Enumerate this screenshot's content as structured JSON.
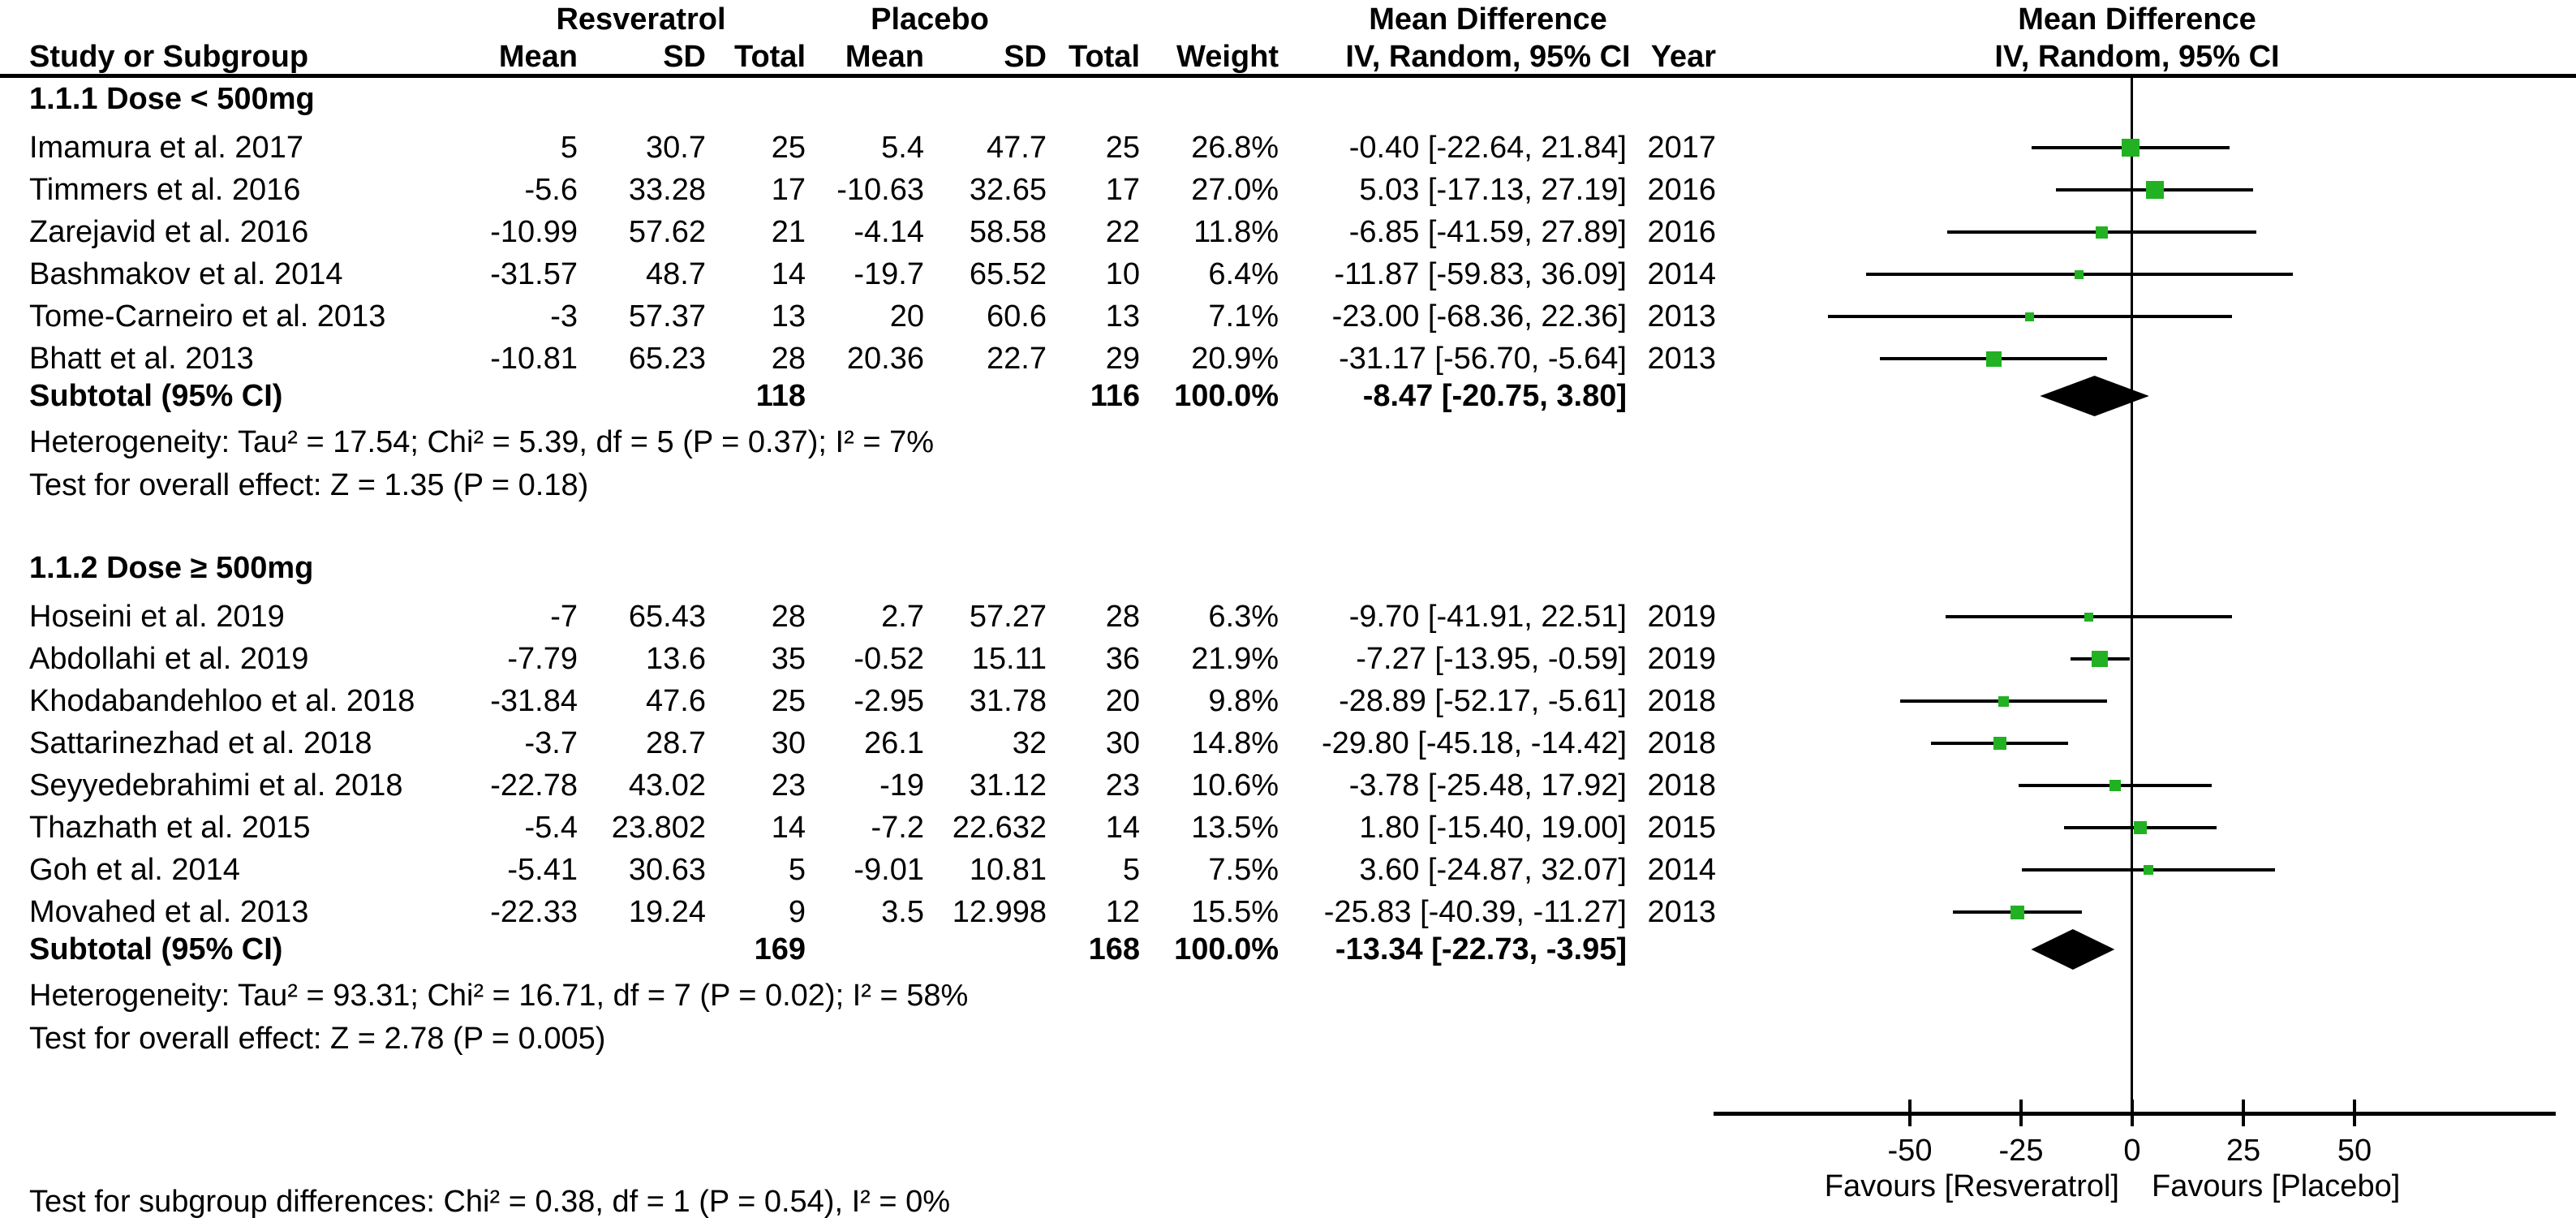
{
  "colors": {
    "marker_green": "#22b122",
    "text": "#000000"
  },
  "header": {
    "study_col": "Study or Subgroup",
    "group_treatment": "Resveratrol",
    "group_control": "Placebo",
    "md_label": "Mean Difference",
    "cols": [
      "Mean",
      "SD",
      "Total",
      "Mean",
      "SD",
      "Total",
      "Weight"
    ],
    "iv_label": "IV, Random, 95% CI",
    "year_label": "Year"
  },
  "footer_note": "Test for subgroup differences: Chi² = 0.38, df = 1 (P = 0.54), I² = 0%",
  "chart_data": {
    "type": "forest",
    "effect_measure": "Mean Difference",
    "model": "IV, Random, 95% CI",
    "x_axis": {
      "ticks": [
        -50,
        -25,
        0,
        25,
        50
      ],
      "min": -94,
      "max": 95
    },
    "favours_left": "Favours [Resveratrol]",
    "favours_right": "Favours [Placebo]",
    "subgroups": [
      {
        "title": "1.1.1 Dose < 500mg",
        "studies": [
          {
            "study": "Imamura et al. 2017",
            "t_mean": "5",
            "t_sd": "30.7",
            "t_total": "25",
            "c_mean": "5.4",
            "c_sd": "47.7",
            "c_total": "25",
            "weight": "26.8%",
            "weight_pct": 26.8,
            "ci_label": "-0.40 [-22.64, 21.84]",
            "year": "2017",
            "est": -0.4,
            "lo": -22.64,
            "hi": 21.84
          },
          {
            "study": "Timmers et al. 2016",
            "t_mean": "-5.6",
            "t_sd": "33.28",
            "t_total": "17",
            "c_mean": "-10.63",
            "c_sd": "32.65",
            "c_total": "17",
            "weight": "27.0%",
            "weight_pct": 27.0,
            "ci_label": "5.03 [-17.13, 27.19]",
            "year": "2016",
            "est": 5.03,
            "lo": -17.13,
            "hi": 27.19
          },
          {
            "study": "Zarejavid et al. 2016",
            "t_mean": "-10.99",
            "t_sd": "57.62",
            "t_total": "21",
            "c_mean": "-4.14",
            "c_sd": "58.58",
            "c_total": "22",
            "weight": "11.8%",
            "weight_pct": 11.8,
            "ci_label": "-6.85 [-41.59, 27.89]",
            "year": "2016",
            "est": -6.85,
            "lo": -41.59,
            "hi": 27.89
          },
          {
            "study": "Bashmakov et al. 2014",
            "t_mean": "-31.57",
            "t_sd": "48.7",
            "t_total": "14",
            "c_mean": "-19.7",
            "c_sd": "65.52",
            "c_total": "10",
            "weight": "6.4%",
            "weight_pct": 6.4,
            "ci_label": "-11.87 [-59.83, 36.09]",
            "year": "2014",
            "est": -11.87,
            "lo": -59.83,
            "hi": 36.09
          },
          {
            "study": "Tome-Carneiro et al. 2013",
            "t_mean": "-3",
            "t_sd": "57.37",
            "t_total": "13",
            "c_mean": "20",
            "c_sd": "60.6",
            "c_total": "13",
            "weight": "7.1%",
            "weight_pct": 7.1,
            "ci_label": "-23.00 [-68.36, 22.36]",
            "year": "2013",
            "est": -23.0,
            "lo": -68.36,
            "hi": 22.36
          },
          {
            "study": "Bhatt et al. 2013",
            "t_mean": "-10.81",
            "t_sd": "65.23",
            "t_total": "28",
            "c_mean": "20.36",
            "c_sd": "22.7",
            "c_total": "29",
            "weight": "20.9%",
            "weight_pct": 20.9,
            "ci_label": "-31.17 [-56.70, -5.64]",
            "year": "2013",
            "est": -31.17,
            "lo": -56.7,
            "hi": -5.64
          }
        ],
        "subtotal": {
          "label": "Subtotal (95% CI)",
          "t_total": "118",
          "c_total": "116",
          "weight": "100.0%",
          "ci_label": "-8.47 [-20.75, 3.80]",
          "est": -8.47,
          "lo": -20.75,
          "hi": 3.8
        },
        "heterogeneity": "Heterogeneity: Tau² = 17.54; Chi² = 5.39, df = 5 (P = 0.37); I² = 7%",
        "overall_effect": "Test for overall effect: Z = 1.35 (P = 0.18)"
      },
      {
        "title": "1.1.2 Dose ≥ 500mg",
        "studies": [
          {
            "study": "Hoseini et al. 2019",
            "t_mean": "-7",
            "t_sd": "65.43",
            "t_total": "28",
            "c_mean": "2.7",
            "c_sd": "57.27",
            "c_total": "28",
            "weight": "6.3%",
            "weight_pct": 6.3,
            "ci_label": "-9.70 [-41.91, 22.51]",
            "year": "2019",
            "est": -9.7,
            "lo": -41.91,
            "hi": 22.51
          },
          {
            "study": "Abdollahi et al. 2019",
            "t_mean": "-7.79",
            "t_sd": "13.6",
            "t_total": "35",
            "c_mean": "-0.52",
            "c_sd": "15.11",
            "c_total": "36",
            "weight": "21.9%",
            "weight_pct": 21.9,
            "ci_label": "-7.27 [-13.95, -0.59]",
            "year": "2019",
            "est": -7.27,
            "lo": -13.95,
            "hi": -0.59
          },
          {
            "study": "Khodabandehloo et al. 2018",
            "t_mean": "-31.84",
            "t_sd": "47.6",
            "t_total": "25",
            "c_mean": "-2.95",
            "c_sd": "31.78",
            "c_total": "20",
            "weight": "9.8%",
            "weight_pct": 9.8,
            "ci_label": "-28.89 [-52.17, -5.61]",
            "year": "2018",
            "est": -28.89,
            "lo": -52.17,
            "hi": -5.61
          },
          {
            "study": "Sattarinezhad et al. 2018",
            "t_mean": "-3.7",
            "t_sd": "28.7",
            "t_total": "30",
            "c_mean": "26.1",
            "c_sd": "32",
            "c_total": "30",
            "weight": "14.8%",
            "weight_pct": 14.8,
            "ci_label": "-29.80 [-45.18, -14.42]",
            "year": "2018",
            "est": -29.8,
            "lo": -45.18,
            "hi": -14.42
          },
          {
            "study": "Seyyedebrahimi et al. 2018",
            "t_mean": "-22.78",
            "t_sd": "43.02",
            "t_total": "23",
            "c_mean": "-19",
            "c_sd": "31.12",
            "c_total": "23",
            "weight": "10.6%",
            "weight_pct": 10.6,
            "ci_label": "-3.78 [-25.48, 17.92]",
            "year": "2018",
            "est": -3.78,
            "lo": -25.48,
            "hi": 17.92
          },
          {
            "study": "Thazhath et al. 2015",
            "t_mean": "-5.4",
            "t_sd": "23.802",
            "t_total": "14",
            "c_mean": "-7.2",
            "c_sd": "22.632",
            "c_total": "14",
            "weight": "13.5%",
            "weight_pct": 13.5,
            "ci_label": "1.80 [-15.40, 19.00]",
            "year": "2015",
            "est": 1.8,
            "lo": -15.4,
            "hi": 19.0
          },
          {
            "study": "Goh et al. 2014",
            "t_mean": "-5.41",
            "t_sd": "30.63",
            "t_total": "5",
            "c_mean": "-9.01",
            "c_sd": "10.81",
            "c_total": "5",
            "weight": "7.5%",
            "weight_pct": 7.5,
            "ci_label": "3.60 [-24.87, 32.07]",
            "year": "2014",
            "est": 3.6,
            "lo": -24.87,
            "hi": 32.07
          },
          {
            "study": "Movahed et al. 2013",
            "t_mean": "-22.33",
            "t_sd": "19.24",
            "t_total": "9",
            "c_mean": "3.5",
            "c_sd": "12.998",
            "c_total": "12",
            "weight": "15.5%",
            "weight_pct": 15.5,
            "ci_label": "-25.83 [-40.39, -11.27]",
            "year": "2013",
            "est": -25.83,
            "lo": -40.39,
            "hi": -11.27
          }
        ],
        "subtotal": {
          "label": "Subtotal (95% CI)",
          "t_total": "169",
          "c_total": "168",
          "weight": "100.0%",
          "ci_label": "-13.34 [-22.73, -3.95]",
          "est": -13.34,
          "lo": -22.73,
          "hi": -3.95
        },
        "heterogeneity": "Heterogeneity: Tau² = 93.31; Chi² = 16.71, df = 7 (P = 0.02); I² = 58%",
        "overall_effect": "Test for overall effect: Z = 2.78 (P = 0.005)"
      }
    ]
  }
}
